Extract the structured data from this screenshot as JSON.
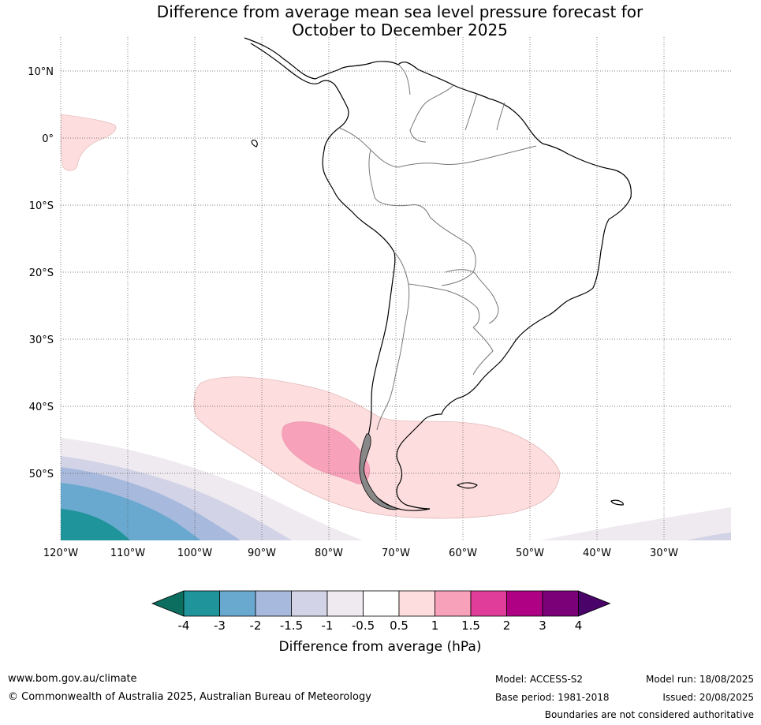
{
  "title": {
    "line1": "Difference from average mean sea level pressure forecast for",
    "line2": "October to December 2025"
  },
  "map": {
    "lat_labels": [
      "10°N",
      "0°",
      "10°S",
      "20°S",
      "30°S",
      "40°S",
      "50°S"
    ],
    "lon_labels": [
      "120°W",
      "110°W",
      "100°W",
      "90°W",
      "80°W",
      "70°W",
      "60°W",
      "50°W",
      "40°W",
      "30°W"
    ]
  },
  "colorbar": {
    "title": "Difference from average (hPa)",
    "tick_labels": [
      "-4",
      "-3",
      "-2",
      "-1.5",
      "-1",
      "-0.5",
      "0.5",
      "1",
      "1.5",
      "2",
      "3",
      "4"
    ],
    "colors": [
      "#0c6e5f",
      "#1f959b",
      "#69a9d0",
      "#a7b9dc",
      "#d3d3e7",
      "#efeaf0",
      "#ffffff",
      "#fddddd",
      "#f8a1ba",
      "#e03c9a",
      "#ae0183",
      "#7b0178",
      "#4a0368"
    ]
  },
  "footer": {
    "website": "www.bom.gov.au/climate",
    "copyright": "© Commonwealth of Australia 2025, Australian Bureau of Meteorology",
    "model": "Model: ACCESS-S2",
    "base_period": "Base period: 1981-2018",
    "model_run": "Model run: 18/08/2025",
    "issued": "Issued: 20/08/2025",
    "disclaimer": "Boundaries are not considered authoritative"
  }
}
